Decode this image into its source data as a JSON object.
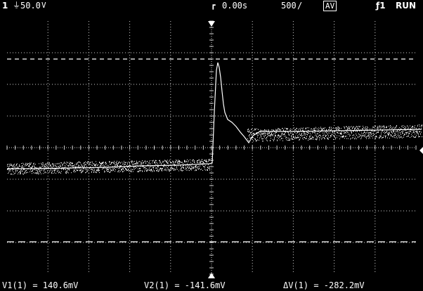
{
  "header": {
    "channel": "1",
    "channel_scale": "50.0",
    "channel_scale_unit": "V",
    "trigger_time": "0.00s",
    "timebase": "500",
    "timebase_unit": "/",
    "acquisition_mode": "AV",
    "trigger_channel": "1",
    "run_state": "RUN"
  },
  "readouts": {
    "v1": "V1(1) = 140.6mV",
    "v2": "V2(1) = -141.6mV",
    "dv": "ΔV(1) = -282.2mV"
  },
  "display": {
    "trace_color": "#ffffff",
    "grid_color": "#cfcfcf",
    "background": "#000000",
    "grid_divisions": {
      "x": 10,
      "y": 8
    }
  },
  "icons": [
    "ground-coupling-icon",
    "trigger-edge-icon",
    "trigger-marker-icon",
    "ground-marker-icon",
    "trigger-level-marker-icon"
  ]
}
